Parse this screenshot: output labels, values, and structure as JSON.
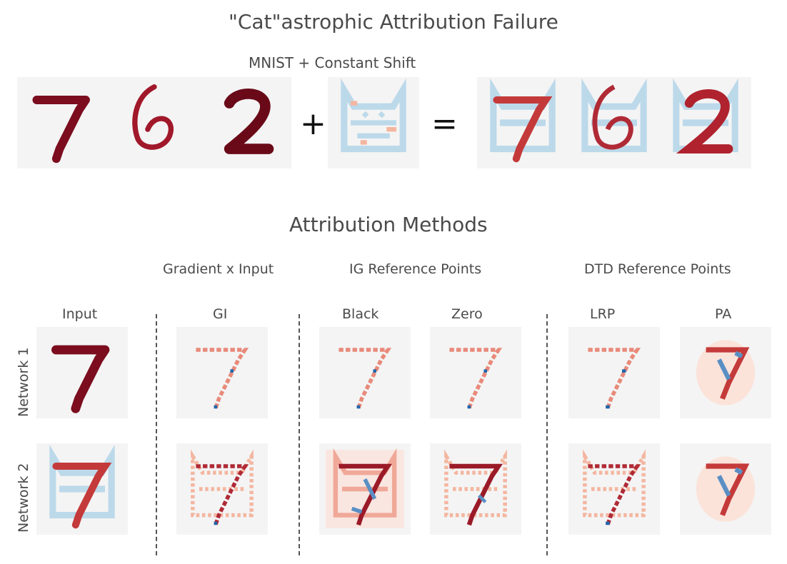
{
  "figure": {
    "title": "\"Cat\"astrophic Attribution Failure",
    "top_subtitle": "MNIST + Constant Shift",
    "plus": "+",
    "equals": "=",
    "methods_title": "Attribution Methods"
  },
  "groups": {
    "gradient_x_input": "Gradient x Input",
    "ig_reference_points": "IG Reference Points",
    "dtd_reference_points": "DTD Reference Points"
  },
  "columns": {
    "input": "Input",
    "gi": "GI",
    "black": "Black",
    "zero": "Zero",
    "lrp": "LRP",
    "pa": "PA"
  },
  "rows": {
    "network1": "Network 1",
    "network2": "Network 2"
  },
  "colors": {
    "dark_red": "#7b0d1e",
    "mid_red": "#c43a3a",
    "light_red": "#f4b6a0",
    "light_blue": "#bcd9ea",
    "dark_blue": "#2166ac",
    "tile_bg": "#f4f4f4"
  }
}
